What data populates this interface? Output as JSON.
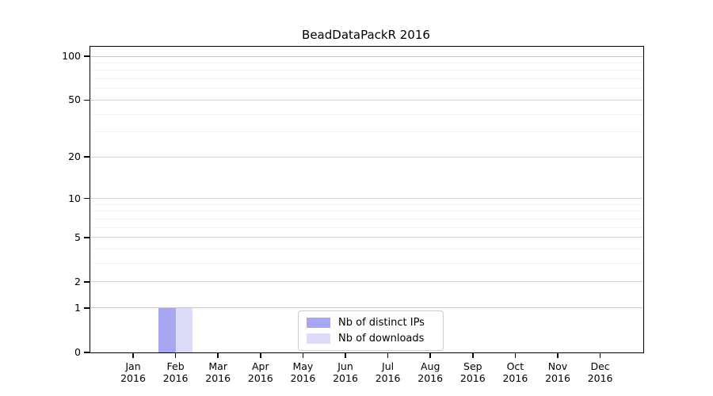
{
  "window": {
    "background": "#ffffff"
  },
  "chart_data": {
    "type": "bar",
    "title": "BeadDataPackR 2016",
    "categories": [
      "Jan\n2016",
      "Feb\n2016",
      "Mar\n2016",
      "Apr\n2016",
      "May\n2016",
      "Jun\n2016",
      "Jul\n2016",
      "Aug\n2016",
      "Sep\n2016",
      "Oct\n2016",
      "Nov\n2016",
      "Dec\n2016"
    ],
    "series": [
      {
        "name": "Nb of distinct IPs",
        "color": "#a7a7f2",
        "values": [
          0,
          1,
          0,
          0,
          0,
          0,
          0,
          0,
          0,
          0,
          0,
          0
        ]
      },
      {
        "name": "Nb of downloads",
        "color": "#dcdcf8",
        "values": [
          0,
          1,
          0,
          0,
          0,
          0,
          0,
          0,
          0,
          0,
          0,
          0
        ]
      }
    ],
    "yticks": [
      0,
      1,
      2,
      5,
      10,
      20,
      50,
      100
    ],
    "y_minor_ticks": [
      3,
      4,
      6,
      7,
      8,
      9,
      30,
      40,
      60,
      70,
      80,
      90
    ],
    "ylim": [
      0,
      113
    ],
    "yscale": "log1p",
    "xlabel": "",
    "ylabel": "",
    "grid": "horizontal",
    "legend": {
      "position": "bottom-center",
      "border_color": "#cccccc",
      "background": "#ffffff"
    }
  }
}
